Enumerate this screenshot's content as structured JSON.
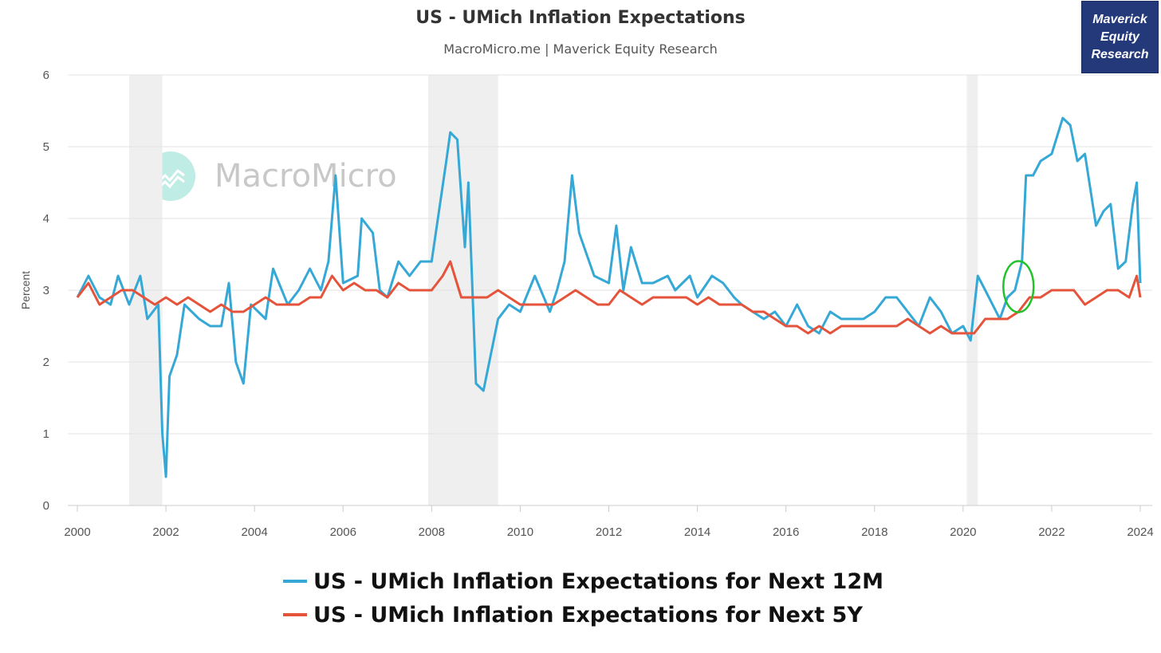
{
  "header": {
    "title": "US - UMich Inflation Expectations",
    "subtitle": "MacroMicro.me | Maverick Equity Research"
  },
  "brand": {
    "label": "Maverick\nEquity\nResearch",
    "background": "#24397a"
  },
  "watermark": {
    "text": "MacroMicro",
    "icon": "macromicro-logo-icon"
  },
  "chart_data": {
    "type": "line",
    "title": "US - UMich Inflation Expectations",
    "subtitle": "MacroMicro.me | Maverick Equity Research",
    "ylabel": "Percent",
    "xlabel": "",
    "ylim": [
      0,
      6
    ],
    "xlim": [
      2000,
      2024
    ],
    "y_ticks": [
      0,
      1,
      2,
      3,
      4,
      5,
      6
    ],
    "x_ticks": [
      2000,
      2002,
      2004,
      2006,
      2008,
      2010,
      2012,
      2014,
      2016,
      2018,
      2020,
      2022,
      2024
    ],
    "grid": "horizontal",
    "legend_position": "bottom",
    "recessions": [
      [
        2001.17,
        2001.92
      ],
      [
        2007.92,
        2009.5
      ],
      [
        2020.08,
        2020.33
      ]
    ],
    "annotation": {
      "type": "green-ellipse",
      "x": 2021.25,
      "y": 3.05
    },
    "series": [
      {
        "name": "US - UMich Inflation Expectations for Next 12M",
        "color": "#35a8d6",
        "points": [
          [
            2000.0,
            2.9
          ],
          [
            2000.25,
            3.2
          ],
          [
            2000.5,
            2.9
          ],
          [
            2000.75,
            2.8
          ],
          [
            2000.92,
            3.2
          ],
          [
            2001.17,
            2.8
          ],
          [
            2001.42,
            3.2
          ],
          [
            2001.58,
            2.6
          ],
          [
            2001.83,
            2.8
          ],
          [
            2001.92,
            1.0
          ],
          [
            2002.0,
            0.4
          ],
          [
            2002.08,
            1.8
          ],
          [
            2002.25,
            2.1
          ],
          [
            2002.42,
            2.8
          ],
          [
            2002.75,
            2.6
          ],
          [
            2003.0,
            2.5
          ],
          [
            2003.25,
            2.5
          ],
          [
            2003.42,
            3.1
          ],
          [
            2003.58,
            2.0
          ],
          [
            2003.75,
            1.7
          ],
          [
            2003.92,
            2.8
          ],
          [
            2004.25,
            2.6
          ],
          [
            2004.42,
            3.3
          ],
          [
            2004.75,
            2.8
          ],
          [
            2005.0,
            3.0
          ],
          [
            2005.25,
            3.3
          ],
          [
            2005.5,
            3.0
          ],
          [
            2005.67,
            3.4
          ],
          [
            2005.83,
            4.6
          ],
          [
            2006.0,
            3.1
          ],
          [
            2006.33,
            3.2
          ],
          [
            2006.42,
            4.0
          ],
          [
            2006.67,
            3.8
          ],
          [
            2006.83,
            3.0
          ],
          [
            2007.0,
            2.9
          ],
          [
            2007.25,
            3.4
          ],
          [
            2007.5,
            3.2
          ],
          [
            2007.75,
            3.4
          ],
          [
            2008.0,
            3.4
          ],
          [
            2008.33,
            4.8
          ],
          [
            2008.42,
            5.2
          ],
          [
            2008.58,
            5.1
          ],
          [
            2008.75,
            3.6
          ],
          [
            2008.83,
            4.5
          ],
          [
            2009.0,
            1.7
          ],
          [
            2009.17,
            1.6
          ],
          [
            2009.5,
            2.6
          ],
          [
            2009.75,
            2.8
          ],
          [
            2010.0,
            2.7
          ],
          [
            2010.33,
            3.2
          ],
          [
            2010.67,
            2.7
          ],
          [
            2010.83,
            3.0
          ],
          [
            2011.0,
            3.4
          ],
          [
            2011.17,
            4.6
          ],
          [
            2011.33,
            3.8
          ],
          [
            2011.5,
            3.5
          ],
          [
            2011.67,
            3.2
          ],
          [
            2012.0,
            3.1
          ],
          [
            2012.17,
            3.9
          ],
          [
            2012.33,
            3.0
          ],
          [
            2012.5,
            3.6
          ],
          [
            2012.75,
            3.1
          ],
          [
            2013.0,
            3.1
          ],
          [
            2013.33,
            3.2
          ],
          [
            2013.5,
            3.0
          ],
          [
            2013.83,
            3.2
          ],
          [
            2014.0,
            2.9
          ],
          [
            2014.33,
            3.2
          ],
          [
            2014.58,
            3.1
          ],
          [
            2014.83,
            2.9
          ],
          [
            2015.0,
            2.8
          ],
          [
            2015.25,
            2.7
          ],
          [
            2015.5,
            2.6
          ],
          [
            2015.75,
            2.7
          ],
          [
            2016.0,
            2.5
          ],
          [
            2016.25,
            2.8
          ],
          [
            2016.5,
            2.5
          ],
          [
            2016.75,
            2.4
          ],
          [
            2017.0,
            2.7
          ],
          [
            2017.25,
            2.6
          ],
          [
            2017.5,
            2.6
          ],
          [
            2017.75,
            2.6
          ],
          [
            2018.0,
            2.7
          ],
          [
            2018.25,
            2.9
          ],
          [
            2018.5,
            2.9
          ],
          [
            2018.75,
            2.7
          ],
          [
            2019.0,
            2.5
          ],
          [
            2019.25,
            2.9
          ],
          [
            2019.5,
            2.7
          ],
          [
            2019.75,
            2.4
          ],
          [
            2020.0,
            2.5
          ],
          [
            2020.17,
            2.3
          ],
          [
            2020.33,
            3.2
          ],
          [
            2020.5,
            3.0
          ],
          [
            2020.83,
            2.6
          ],
          [
            2021.0,
            2.9
          ],
          [
            2021.17,
            3.0
          ],
          [
            2021.33,
            3.4
          ],
          [
            2021.42,
            4.6
          ],
          [
            2021.58,
            4.6
          ],
          [
            2021.75,
            4.8
          ],
          [
            2022.0,
            4.9
          ],
          [
            2022.25,
            5.4
          ],
          [
            2022.42,
            5.3
          ],
          [
            2022.58,
            4.8
          ],
          [
            2022.75,
            4.9
          ],
          [
            2023.0,
            3.9
          ],
          [
            2023.17,
            4.1
          ],
          [
            2023.33,
            4.2
          ],
          [
            2023.5,
            3.3
          ],
          [
            2023.67,
            3.4
          ],
          [
            2023.83,
            4.2
          ],
          [
            2023.92,
            4.5
          ],
          [
            2024.0,
            3.1
          ]
        ]
      },
      {
        "name": "US - UMich Inflation Expectations for Next 5Y",
        "color": "#e5533b",
        "points": [
          [
            2000.0,
            2.9
          ],
          [
            2000.25,
            3.1
          ],
          [
            2000.5,
            2.8
          ],
          [
            2000.75,
            2.9
          ],
          [
            2001.0,
            3.0
          ],
          [
            2001.25,
            3.0
          ],
          [
            2001.5,
            2.9
          ],
          [
            2001.75,
            2.8
          ],
          [
            2002.0,
            2.9
          ],
          [
            2002.25,
            2.8
          ],
          [
            2002.5,
            2.9
          ],
          [
            2002.75,
            2.8
          ],
          [
            2003.0,
            2.7
          ],
          [
            2003.25,
            2.8
          ],
          [
            2003.5,
            2.7
          ],
          [
            2003.75,
            2.7
          ],
          [
            2004.0,
            2.8
          ],
          [
            2004.25,
            2.9
          ],
          [
            2004.5,
            2.8
          ],
          [
            2004.75,
            2.8
          ],
          [
            2005.0,
            2.8
          ],
          [
            2005.25,
            2.9
          ],
          [
            2005.5,
            2.9
          ],
          [
            2005.75,
            3.2
          ],
          [
            2006.0,
            3.0
          ],
          [
            2006.25,
            3.1
          ],
          [
            2006.5,
            3.0
          ],
          [
            2006.75,
            3.0
          ],
          [
            2007.0,
            2.9
          ],
          [
            2007.25,
            3.1
          ],
          [
            2007.5,
            3.0
          ],
          [
            2007.75,
            3.0
          ],
          [
            2008.0,
            3.0
          ],
          [
            2008.25,
            3.2
          ],
          [
            2008.42,
            3.4
          ],
          [
            2008.67,
            2.9
          ],
          [
            2009.0,
            2.9
          ],
          [
            2009.25,
            2.9
          ],
          [
            2009.5,
            3.0
          ],
          [
            2009.75,
            2.9
          ],
          [
            2010.0,
            2.8
          ],
          [
            2010.25,
            2.8
          ],
          [
            2010.5,
            2.8
          ],
          [
            2010.75,
            2.8
          ],
          [
            2011.0,
            2.9
          ],
          [
            2011.25,
            3.0
          ],
          [
            2011.5,
            2.9
          ],
          [
            2011.75,
            2.8
          ],
          [
            2012.0,
            2.8
          ],
          [
            2012.25,
            3.0
          ],
          [
            2012.5,
            2.9
          ],
          [
            2012.75,
            2.8
          ],
          [
            2013.0,
            2.9
          ],
          [
            2013.25,
            2.9
          ],
          [
            2013.5,
            2.9
          ],
          [
            2013.75,
            2.9
          ],
          [
            2014.0,
            2.8
          ],
          [
            2014.25,
            2.9
          ],
          [
            2014.5,
            2.8
          ],
          [
            2014.75,
            2.8
          ],
          [
            2015.0,
            2.8
          ],
          [
            2015.25,
            2.7
          ],
          [
            2015.5,
            2.7
          ],
          [
            2015.75,
            2.6
          ],
          [
            2016.0,
            2.5
          ],
          [
            2016.25,
            2.5
          ],
          [
            2016.5,
            2.4
          ],
          [
            2016.75,
            2.5
          ],
          [
            2017.0,
            2.4
          ],
          [
            2017.25,
            2.5
          ],
          [
            2017.5,
            2.5
          ],
          [
            2017.75,
            2.5
          ],
          [
            2018.0,
            2.5
          ],
          [
            2018.25,
            2.5
          ],
          [
            2018.5,
            2.5
          ],
          [
            2018.75,
            2.6
          ],
          [
            2019.0,
            2.5
          ],
          [
            2019.25,
            2.4
          ],
          [
            2019.5,
            2.5
          ],
          [
            2019.75,
            2.4
          ],
          [
            2020.0,
            2.4
          ],
          [
            2020.25,
            2.4
          ],
          [
            2020.5,
            2.6
          ],
          [
            2020.75,
            2.6
          ],
          [
            2021.0,
            2.6
          ],
          [
            2021.25,
            2.7
          ],
          [
            2021.5,
            2.9
          ],
          [
            2021.75,
            2.9
          ],
          [
            2022.0,
            3.0
          ],
          [
            2022.25,
            3.0
          ],
          [
            2022.5,
            3.0
          ],
          [
            2022.75,
            2.8
          ],
          [
            2023.0,
            2.9
          ],
          [
            2023.25,
            3.0
          ],
          [
            2023.5,
            3.0
          ],
          [
            2023.75,
            2.9
          ],
          [
            2023.92,
            3.2
          ],
          [
            2024.0,
            2.9
          ]
        ]
      }
    ]
  }
}
